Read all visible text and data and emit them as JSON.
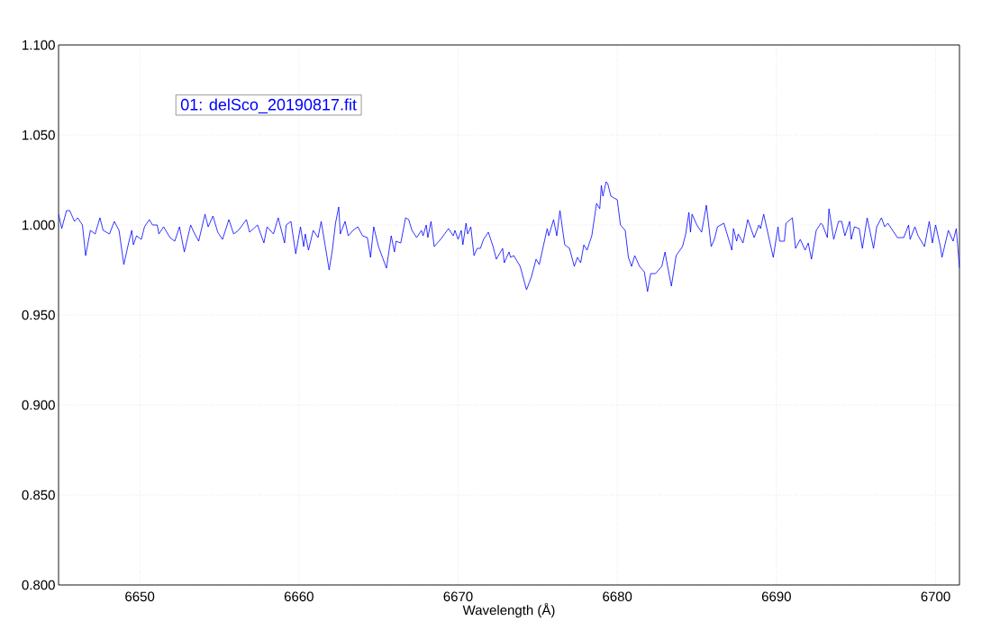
{
  "chart_data": {
    "type": "line",
    "xlabel": "Wavelength (Å)",
    "xlim": [
      6644.9,
      6701.5
    ],
    "ylim": [
      0.8,
      1.1
    ],
    "xticks": [
      6650,
      6660,
      6670,
      6680,
      6690,
      6700
    ],
    "yticks": [
      {
        "value": 0.8,
        "label": "0.800"
      },
      {
        "value": 0.85,
        "label": "0.850"
      },
      {
        "value": 0.9,
        "label": "0.900"
      },
      {
        "value": 0.95,
        "label": "0.950"
      },
      {
        "value": 1.0,
        "label": "1.000"
      },
      {
        "value": 1.05,
        "label": "1.050"
      },
      {
        "value": 1.1,
        "label": "1.100"
      }
    ],
    "grid": true,
    "legend": "top left",
    "series": [
      {
        "name": "01: delSco_20190817.fit",
        "color": "#0000ff",
        "x": [
          6644.9,
          6645.1,
          6645.4,
          6645.6,
          6645.9,
          6646.1,
          6646.4,
          6646.6,
          6646.9,
          6647.2,
          6647.5,
          6647.7,
          6648.1,
          6648.4,
          6648.7,
          6649.0,
          6649.3,
          6649.5,
          6649.6,
          6649.8,
          6650.1,
          6650.3,
          6650.6,
          6650.8,
          6651.1,
          6651.2,
          6651.5,
          6651.9,
          6652.2,
          6652.5,
          6652.8,
          6653.2,
          6653.4,
          6653.7,
          6654.1,
          6654.3,
          6654.6,
          6654.9,
          6655.2,
          6655.6,
          6655.9,
          6656.2,
          6656.7,
          6656.9,
          6657.4,
          6657.8,
          6658.0,
          6658.4,
          6658.7,
          6659.1,
          6659.2,
          6659.5,
          6659.8,
          6660.1,
          6660.3,
          6660.4,
          6660.6,
          6660.9,
          6661.2,
          6661.4,
          6661.9,
          6662.1,
          6662.3,
          6662.5,
          6662.6,
          6662.9,
          6663.1,
          6663.4,
          6663.7,
          6664.0,
          6664.3,
          6664.5,
          6664.7,
          6665.0,
          6665.5,
          6665.8,
          6666.0,
          6666.1,
          6666.4,
          6666.7,
          6666.9,
          6667.1,
          6667.4,
          6667.7,
          6667.8,
          6668.0,
          6668.1,
          6668.3,
          6668.5,
          6668.9,
          6669.4,
          6669.7,
          6669.8,
          6670.0,
          6670.2,
          6670.3,
          6670.5,
          6670.6,
          6670.8,
          6671.0,
          6671.2,
          6671.4,
          6671.6,
          6671.9,
          6672.2,
          6672.4,
          6672.8,
          6672.9,
          6673.2,
          6673.3,
          6673.5,
          6673.9,
          6674.3,
          6674.6,
          6674.9,
          6675.1,
          6675.4,
          6675.6,
          6675.7,
          6676.0,
          6676.2,
          6676.4,
          6676.7,
          6677.0,
          6677.3,
          6677.5,
          6677.7,
          6677.9,
          6678.1,
          6678.4,
          6678.7,
          6678.9,
          6679.0,
          6679.1,
          6679.3,
          6679.4,
          6679.6,
          6680.0,
          6680.2,
          6680.5,
          6680.7,
          6680.9,
          6681.1,
          6681.4,
          6681.7,
          6681.9,
          6682.1,
          6682.4,
          6682.8,
          6683.0,
          6683.1,
          6683.4,
          6683.7,
          6684.1,
          6684.3,
          6684.5,
          6684.6,
          6684.7,
          6685.0,
          6685.3,
          6685.6,
          6685.9,
          6686.1,
          6686.3,
          6686.7,
          6687.0,
          6687.2,
          6687.3,
          6687.5,
          6687.6,
          6687.9,
          6688.2,
          6688.6,
          6688.9,
          6689.0,
          6689.2,
          6689.5,
          6689.8,
          6690.1,
          6690.2,
          6690.5,
          6690.6,
          6691.0,
          6691.2,
          6691.5,
          6691.8,
          6692.0,
          6692.2,
          6692.5,
          6692.8,
          6692.9,
          6693.2,
          6693.3,
          6693.6,
          6693.9,
          6694.1,
          6694.3,
          6694.6,
          6694.7,
          6694.9,
          6695.2,
          6695.4,
          6695.7,
          6696.1,
          6696.3,
          6696.6,
          6696.8,
          6697.0,
          6697.6,
          6698.0,
          6698.3,
          6698.4,
          6698.7,
          6698.9,
          6699.3,
          6699.6,
          6699.8,
          6700.0,
          6700.3,
          6700.4,
          6700.8,
          6701.1,
          6701.3,
          6701.5
        ],
        "values": [
          1.006,
          0.998,
          1.008,
          1.008,
          1.002,
          1.004,
          1.0,
          0.983,
          0.997,
          0.995,
          1.004,
          0.997,
          0.995,
          1.002,
          0.997,
          0.978,
          0.99,
          0.997,
          0.989,
          0.994,
          0.992,
          0.999,
          1.003,
          1.0,
          1.0,
          0.995,
          0.999,
          0.993,
          0.991,
          0.999,
          0.985,
          1.0,
          0.996,
          0.991,
          1.006,
          0.999,
          1.005,
          0.996,
          0.992,
          1.003,
          0.995,
          0.997,
          1.003,
          0.996,
          1.0,
          0.99,
          0.999,
          0.995,
          1.004,
          0.99,
          1.0,
          1.002,
          0.984,
          0.999,
          0.988,
          0.995,
          0.986,
          0.997,
          0.993,
          1.002,
          0.975,
          0.986,
          1.001,
          1.01,
          0.995,
          1.002,
          0.994,
          0.997,
          0.999,
          0.994,
          0.993,
          0.982,
          0.999,
          0.988,
          0.976,
          0.994,
          0.985,
          0.991,
          0.99,
          1.004,
          1.003,
          0.997,
          0.993,
          0.997,
          0.994,
          1.0,
          0.993,
          1.002,
          0.988,
          0.992,
          0.998,
          0.994,
          0.997,
          0.992,
          0.997,
          0.989,
          1.001,
          0.995,
          0.999,
          0.983,
          0.987,
          0.987,
          0.992,
          0.996,
          0.988,
          0.981,
          0.987,
          0.979,
          0.985,
          0.982,
          0.983,
          0.977,
          0.964,
          0.971,
          0.981,
          0.978,
          0.99,
          0.998,
          0.994,
          1.003,
          0.994,
          1.008,
          0.989,
          0.987,
          0.977,
          0.982,
          0.979,
          0.989,
          0.986,
          0.994,
          1.012,
          1.009,
          1.022,
          1.016,
          1.024,
          1.023,
          1.016,
          1.014,
          1.0,
          0.997,
          0.982,
          0.977,
          0.983,
          0.977,
          0.974,
          0.963,
          0.973,
          0.973,
          0.977,
          0.985,
          0.98,
          0.966,
          0.983,
          0.988,
          0.995,
          1.007,
          0.996,
          1.006,
          1.0,
          0.996,
          1.011,
          0.988,
          0.992,
          0.999,
          1.001,
          0.992,
          0.986,
          0.998,
          0.991,
          0.995,
          0.99,
          1.003,
          0.993,
          1.0,
          0.998,
          1.006,
          0.994,
          0.982,
          0.999,
          0.991,
          0.991,
          1.001,
          1.004,
          0.987,
          0.992,
          0.986,
          0.99,
          0.981,
          0.997,
          1.001,
          1.0,
          0.993,
          1.009,
          0.992,
          1.002,
          1.002,
          0.994,
          1.002,
          0.992,
          0.999,
          0.998,
          0.987,
          1.004,
          0.987,
          0.999,
          1.004,
          0.999,
          1.001,
          0.993,
          0.993,
          1.0,
          0.992,
          0.999,
          0.994,
          0.988,
          1.002,
          0.99,
          1.0,
          0.988,
          0.982,
          0.997,
          0.991,
          0.998,
          0.976
        ]
      }
    ]
  }
}
